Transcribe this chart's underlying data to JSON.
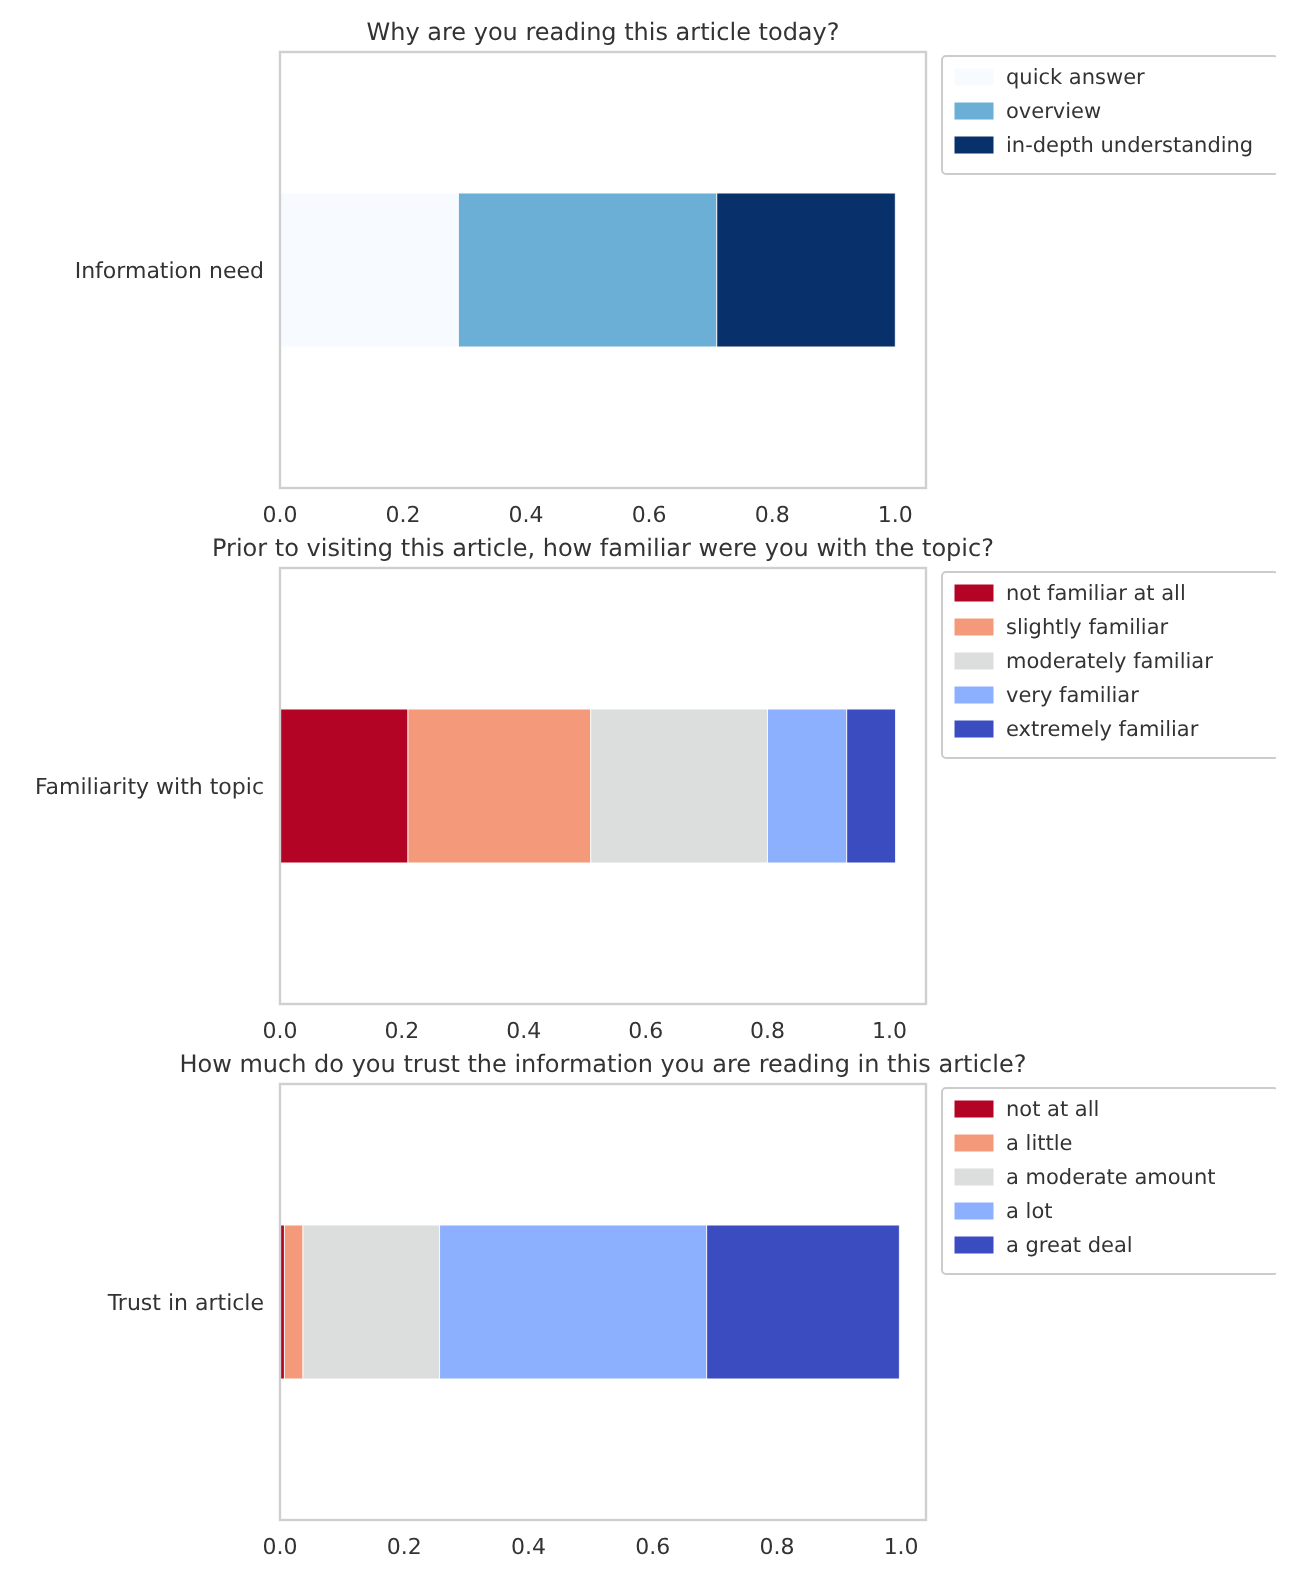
{
  "chart_data": [
    {
      "type": "bar",
      "orientation": "horizontal",
      "stacked": true,
      "title": "Why are you reading this article today?",
      "categories": [
        "Information need"
      ],
      "series": [
        {
          "name": "quick answer",
          "color": "#f7fbff",
          "values": [
            0.29
          ]
        },
        {
          "name": "overview",
          "color": "#6baed6",
          "values": [
            0.42
          ]
        },
        {
          "name": "in-depth understanding",
          "color": "#08306b",
          "values": [
            0.29
          ]
        }
      ],
      "xlim": [
        0,
        1.05
      ],
      "xticks": [
        {
          "value": 0,
          "label": "0.0"
        },
        {
          "value": 0.2,
          "label": "0.2"
        },
        {
          "value": 0.4,
          "label": "0.4"
        },
        {
          "value": 0.6,
          "label": "0.6"
        },
        {
          "value": 0.8,
          "label": "0.8"
        },
        {
          "value": 1,
          "label": "1.0"
        }
      ],
      "legend": "right"
    },
    {
      "type": "bar",
      "orientation": "horizontal",
      "stacked": true,
      "title": "Prior to visiting this article, how familiar were you with the topic?",
      "categories": [
        "Familiarity with topic"
      ],
      "series": [
        {
          "name": "not familiar at all",
          "color": "#b40426",
          "values": [
            0.21
          ]
        },
        {
          "name": "slightly familiar",
          "color": "#f49a7b",
          "values": [
            0.3
          ]
        },
        {
          "name": "moderately familiar",
          "color": "#dcdddd",
          "values": [
            0.29
          ]
        },
        {
          "name": "very familiar",
          "color": "#8db0fe",
          "values": [
            0.13
          ]
        },
        {
          "name": "extremely familiar",
          "color": "#3b4cc0",
          "values": [
            0.08
          ]
        }
      ],
      "xlim": [
        0,
        1.06
      ],
      "xticks": [
        {
          "value": 0,
          "label": "0.0"
        },
        {
          "value": 0.2,
          "label": "0.2"
        },
        {
          "value": 0.4,
          "label": "0.4"
        },
        {
          "value": 0.6,
          "label": "0.6"
        },
        {
          "value": 0.8,
          "label": "0.8"
        },
        {
          "value": 1,
          "label": "1.0"
        }
      ],
      "legend": "right"
    },
    {
      "type": "bar",
      "orientation": "horizontal",
      "stacked": true,
      "title": "How much do you trust the information you are reading in this article?",
      "categories": [
        "Trust in article"
      ],
      "series": [
        {
          "name": "not at all",
          "color": "#b40426",
          "values": [
            0.007
          ]
        },
        {
          "name": "a little",
          "color": "#f49a7b",
          "values": [
            0.03
          ]
        },
        {
          "name": "a moderate amount",
          "color": "#dcdddd",
          "values": [
            0.22
          ]
        },
        {
          "name": "a lot",
          "color": "#8db0fe",
          "values": [
            0.43
          ]
        },
        {
          "name": "a great deal",
          "color": "#3b4cc0",
          "values": [
            0.31
          ]
        }
      ],
      "xlim": [
        0,
        1.04
      ],
      "xticks": [
        {
          "value": 0,
          "label": "0.0"
        },
        {
          "value": 0.2,
          "label": "0.2"
        },
        {
          "value": 0.4,
          "label": "0.4"
        },
        {
          "value": 0.6,
          "label": "0.6"
        },
        {
          "value": 0.8,
          "label": "0.8"
        },
        {
          "value": 1,
          "label": "1.0"
        }
      ],
      "legend": "right"
    }
  ]
}
